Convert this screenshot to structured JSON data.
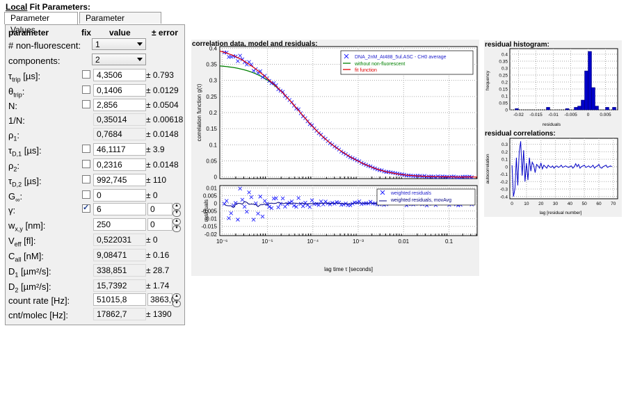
{
  "title": {
    "prefix": "Local",
    "rest": " Fit Parameters:"
  },
  "tabs": [
    "Parameter Values",
    "Parameter Ranges"
  ],
  "headers": {
    "parameter": "parameter",
    "fix": "fix",
    "value": "value",
    "error": "± error"
  },
  "nonfluorescent": {
    "label": "# non-fluorescent:",
    "value": "1"
  },
  "components": {
    "label": "components:",
    "value": "2"
  },
  "params": [
    {
      "label_main": "τ",
      "label_sub": "trip",
      "label_tail": " [µs]:",
      "fix": false,
      "value": "4,3506",
      "error": "± 0.793",
      "editable": true
    },
    {
      "label_main": "θ",
      "label_sub": "trip",
      "label_tail": ":",
      "fix": false,
      "value": "0,1406",
      "error": "± 0.0129",
      "editable": true
    },
    {
      "label_main": "N",
      "label_sub": "",
      "label_tail": ":",
      "fix": false,
      "value": "2,856",
      "error": "± 0.0504",
      "editable": true
    },
    {
      "label_main": "1/N",
      "label_sub": "",
      "label_tail": ":",
      "value": "0,35014",
      "error": "± 0.00618",
      "editable": false
    },
    {
      "label_main": "ρ",
      "label_sub": "1",
      "label_tail": ":",
      "value": "0,7684",
      "error": "± 0.0148",
      "editable": false
    },
    {
      "label_main": "τ",
      "label_sub": "D,1",
      "label_tail": " [µs]:",
      "fix": false,
      "value": "46,1117",
      "error": "± 3.9",
      "editable": true
    },
    {
      "label_main": "ρ",
      "label_sub": "2",
      "label_tail": ":",
      "fix": false,
      "value": "0,2316",
      "error": "± 0.0148",
      "editable": true
    },
    {
      "label_main": "τ",
      "label_sub": "D,2",
      "label_tail": " [µs]:",
      "fix": false,
      "value": "992,745",
      "error": "± 110",
      "editable": true
    },
    {
      "label_main": "G",
      "label_sub": "∞",
      "label_tail": ":",
      "fix": false,
      "value": "0",
      "error": "± 0",
      "editable": true
    },
    {
      "label_main": "γ",
      "label_sub": "",
      "label_tail": ":",
      "fix": true,
      "value": "6",
      "errbox": "0",
      "editable": true
    },
    {
      "label_main": "w",
      "label_sub": "x,y",
      "label_tail": " [nm]:",
      "value": "250",
      "errbox": "0",
      "editable": true
    },
    {
      "label_main": "V",
      "label_sub": "eff",
      "label_tail": " [fl]:",
      "value": "0,522031",
      "error": "± 0",
      "editable": false
    },
    {
      "label_main": "C",
      "label_sub": "all",
      "label_tail": " [nM]:",
      "value": "9,08471",
      "error": "± 0.16",
      "editable": false
    },
    {
      "label_main": "D",
      "label_sub": "1",
      "label_tail": " [µm²/s]:",
      "value": "338,851",
      "error": "± 28.7",
      "editable": false
    },
    {
      "label_main": "D",
      "label_sub": "2",
      "label_tail": " [µm²/s]:",
      "value": "15,7392",
      "error": "± 1.74",
      "editable": false
    },
    {
      "label_main": "count rate",
      "label_sub": "",
      "label_tail": " [Hz]:",
      "value": "51015,8",
      "errbox": "3863,0",
      "editable": true
    },
    {
      "label_main": "cnt/molec",
      "label_sub": "",
      "label_tail": " [Hz]:",
      "value": "17862,7",
      "error": "± 1390",
      "editable": false
    }
  ],
  "main_plot": {
    "title": "correlation data, model and residuals:",
    "ylabel": "correlation function g(τ)",
    "res_ylabel": "residuals",
    "xlabel": "lag time τ [seconds]",
    "legend_top": [
      "DNA_2nM_At488_5ul.ASC - CH0 average",
      "without non-fluorescent",
      "fit function"
    ],
    "legend_bottom": [
      "weighted residuals",
      "weighted residuals, movAvg"
    ],
    "yticks": [
      "0.4",
      "0.35",
      "0.3",
      "0.25",
      "0.2",
      "0.15",
      "0.1",
      "0.05",
      "0"
    ],
    "res_yticks": [
      "0.01",
      "0.005",
      "0",
      "-0.005",
      "-0.01",
      "-0.015",
      "-0.02"
    ],
    "xticks": [
      "10⁻⁶",
      "10⁻⁵",
      "10⁻⁴",
      "10⁻³",
      "0.01",
      "0.1"
    ],
    "colors": {
      "data": "#2222ff",
      "model": "#e00000",
      "nonfluor": "#008000",
      "movavg": "#000080"
    }
  },
  "hist_plot": {
    "title": "residual histogram:",
    "ylabel": "frequency",
    "xlabel": "residuals",
    "yticks": [
      "0.4",
      "0.35",
      "0.3",
      "0.25",
      "0.2",
      "0.15",
      "0.1",
      "0.05",
      "0"
    ],
    "xticks": [
      "-0.02",
      "-0.015",
      "-0.01",
      "-0.005",
      "0",
      "0.005"
    ],
    "color": "#0000c8"
  },
  "acorr_plot": {
    "title": "residual correlations:",
    "ylabel": "autocorrelation",
    "xlabel": "lag [residual number]",
    "yticks": [
      "0.3",
      "0.2",
      "0.1",
      "0",
      "-0.1",
      "-0.2",
      "-0.3",
      "-0.4"
    ],
    "xticks": [
      "0",
      "10",
      "20",
      "30",
      "40",
      "50",
      "60",
      "70"
    ],
    "color": "#0000c8"
  }
}
